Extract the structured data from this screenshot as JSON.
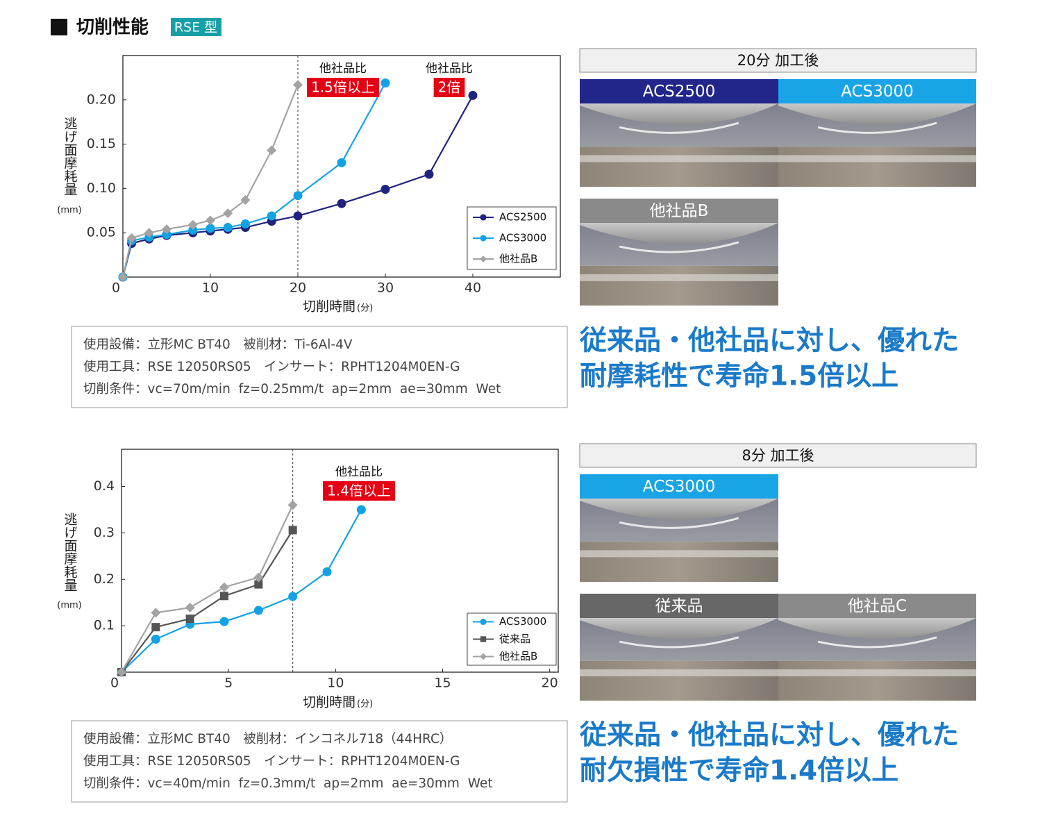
{
  "header": {
    "title": "切削性能",
    "badge": "RSE 型"
  },
  "chart_data": [
    {
      "type": "line",
      "ylabel": "逃げ面摩耗量",
      "ylabel_unit": "(mm)",
      "xlabel": "切削時間",
      "xlabel_unit": "(分)",
      "xlim": [
        0,
        50
      ],
      "xticks": [
        0,
        10,
        20,
        30,
        40
      ],
      "ylim": [
        0,
        0.25
      ],
      "yticks": [
        0.05,
        {
          "value": 0.1,
          "label": "0.10"
        },
        0.15,
        {
          "value": 0.2,
          "label": "0.20"
        }
      ],
      "vline": 20,
      "legend": "lower right",
      "series": [
        {
          "name": "ACS2500",
          "color": "#1f237f",
          "marker": "circle",
          "x": [
            0,
            1,
            3,
            5,
            8,
            10,
            12,
            14,
            17,
            20,
            25,
            30,
            35,
            40
          ],
          "values": [
            0,
            0.038,
            0.043,
            0.047,
            0.05,
            0.052,
            0.054,
            0.056,
            0.063,
            0.069,
            0.083,
            0.099,
            0.116,
            0.205
          ]
        },
        {
          "name": "ACS3000",
          "color": "#13a2e3",
          "marker": "circle",
          "x": [
            0,
            1,
            3,
            5,
            8,
            10,
            12,
            14,
            17,
            20,
            25,
            30
          ],
          "values": [
            0,
            0.041,
            0.045,
            0.048,
            0.053,
            0.055,
            0.056,
            0.06,
            0.069,
            0.092,
            0.129,
            0.219
          ]
        },
        {
          "name": "他社品B",
          "color": "#a3a3a3",
          "marker": "diamond",
          "x": [
            0,
            1,
            3,
            5,
            8,
            10,
            12,
            14,
            17,
            20
          ],
          "values": [
            0,
            0.044,
            0.05,
            0.054,
            0.059,
            0.064,
            0.072,
            0.087,
            0.143,
            0.217
          ]
        }
      ],
      "annotations": [
        {
          "text": "他社品比",
          "badge": "1.5倍以上"
        },
        {
          "text": "他社品比",
          "badge": "2倍"
        }
      ]
    },
    {
      "type": "line",
      "ylabel": "逃げ面摩耗量",
      "ylabel_unit": "(mm)",
      "xlabel": "切削時間",
      "xlabel_unit": "(分)",
      "xlim": [
        0,
        20.4
      ],
      "xticks": [
        0,
        5,
        10,
        15,
        20
      ],
      "ylim": [
        0,
        0.48
      ],
      "yticks": [
        0.1,
        0.2,
        0.3,
        0.4
      ],
      "vline": 8,
      "legend": "lower right",
      "series": [
        {
          "name": "ACS3000",
          "color": "#13a2e3",
          "marker": "circle",
          "x": [
            0,
            1.6,
            3.2,
            4.8,
            6.4,
            8,
            9.6,
            11.2
          ],
          "values": [
            0,
            0.071,
            0.103,
            0.109,
            0.133,
            0.163,
            0.216,
            0.35
          ]
        },
        {
          "name": "従来品",
          "color": "#555555",
          "marker": "square",
          "x": [
            0,
            1.6,
            3.2,
            4.8,
            6.4,
            8
          ],
          "values": [
            0,
            0.097,
            0.115,
            0.164,
            0.189,
            0.306
          ]
        },
        {
          "name": "他社品B",
          "color": "#a3a3a3",
          "marker": "diamond",
          "x": [
            0,
            1.6,
            3.2,
            4.8,
            6.4,
            8
          ],
          "values": [
            0,
            0.128,
            0.139,
            0.183,
            0.204,
            0.36
          ]
        }
      ],
      "annotations": [
        {
          "text": "他社品比",
          "badge": "1.4倍以上"
        }
      ]
    }
  ],
  "conditions": [
    [
      "使用設備：立形MC BT40　被削材：Ti-6Al-4V",
      "使用工具：RSE 12050RS05　インサート：RPHT1204M0EN-G",
      "切削条件：vc=70m/min  fz=0.25mm/t  ap=2mm  ae=30mm  Wet"
    ],
    [
      "使用設備：立形MC BT40　被削材：インコネル718（44HRC）",
      "使用工具：RSE 12050RS05　インサート：RPHT1204M0EN-G",
      "切削条件：vc=40m/min  fz=0.3mm/t  ap=2mm  ae=30mm  Wet"
    ]
  ],
  "photo_panels": [
    {
      "title": "20分 加工後",
      "labels": [
        "ACS2500",
        "ACS3000",
        "他社品B"
      ]
    },
    {
      "title": "8分 加工後",
      "labels": [
        "ACS3000",
        "従来品",
        "他社品C"
      ]
    }
  ],
  "claims": [
    [
      "従来品・他社品に対し、優れた",
      "耐摩耗性で寿命1.5倍以上"
    ],
    [
      "従来品・他社品に対し、優れた",
      "耐欠損性で寿命1.4倍以上"
    ]
  ]
}
